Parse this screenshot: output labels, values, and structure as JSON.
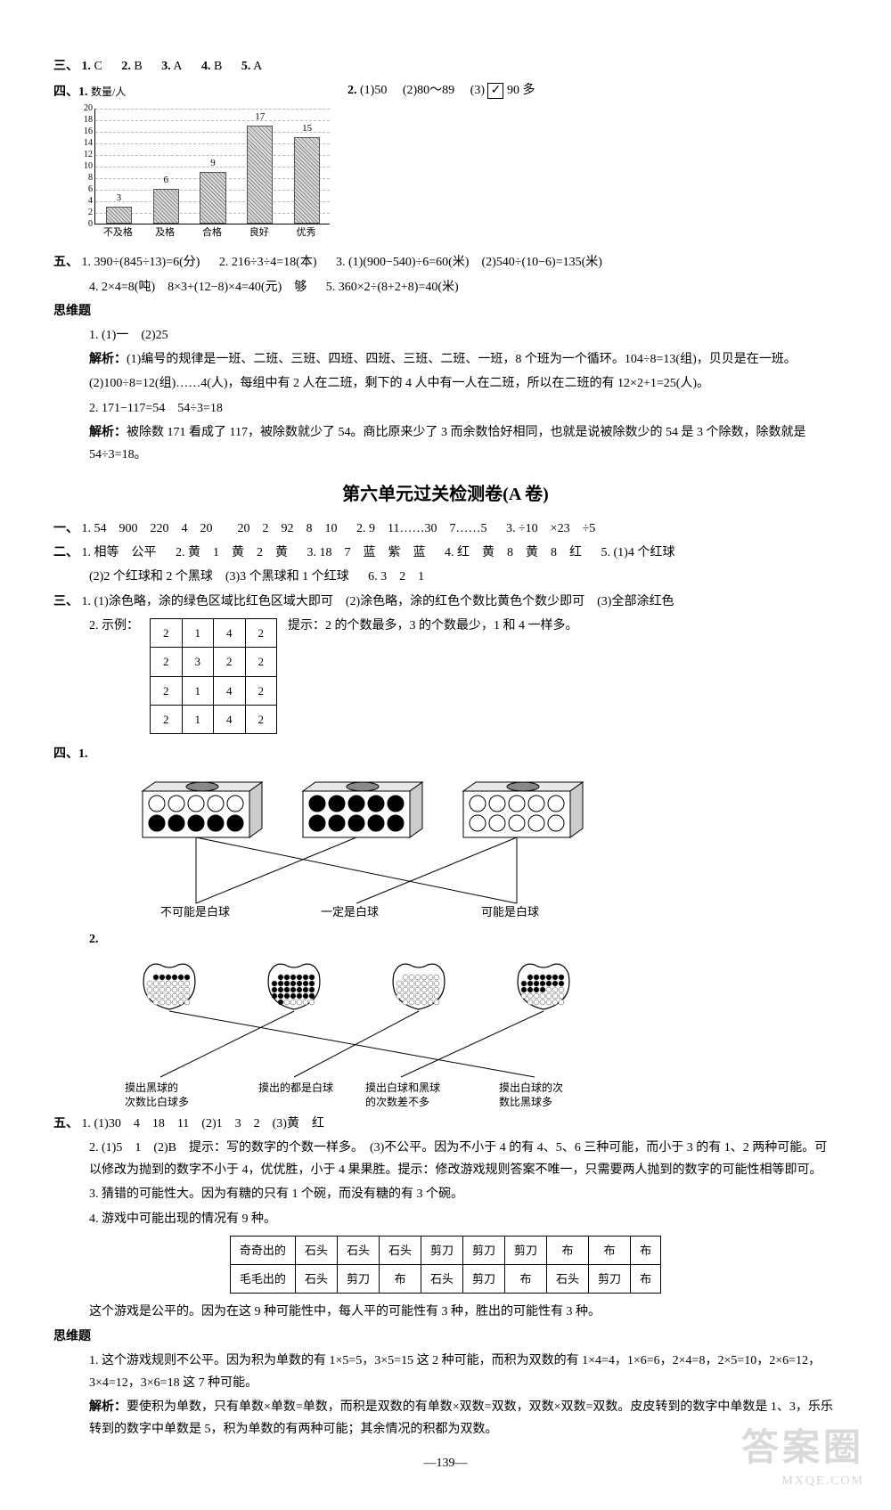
{
  "san": {
    "label": "三、",
    "items": [
      {
        "n": "1.",
        "v": "C"
      },
      {
        "n": "2.",
        "v": "B"
      },
      {
        "n": "3.",
        "v": "A"
      },
      {
        "n": "4.",
        "v": "B"
      },
      {
        "n": "5.",
        "v": "A"
      }
    ]
  },
  "si": {
    "label": "四、1.",
    "chart": {
      "y_title": "数量/人",
      "ymax": 20,
      "ystep": 2,
      "yticks": [
        0,
        2,
        4,
        6,
        8,
        10,
        12,
        14,
        16,
        18,
        20
      ],
      "categories": [
        "不及格",
        "及格",
        "合格",
        "良好",
        "优秀"
      ],
      "values": [
        3,
        6,
        9,
        17,
        15
      ],
      "bar_width_ratio": 0.55
    },
    "q2": {
      "pre": "2.",
      "a": "(1)50",
      "b": "(2)80～89",
      "c": "(3)",
      "check": "✓",
      "d": "90 多"
    }
  },
  "wu": {
    "label": "五、",
    "items": [
      "1. 390÷(845÷13)=6(分)",
      "2. 216÷3÷4=18(本)",
      "3. (1)(900−540)÷6=60(米)　(2)540÷(10−6)=135(米)",
      "4. 2×4=8(吨)　8×3+(12−8)×4=40(元)　够",
      "5. 360×2÷(8+2+8)=40(米)"
    ]
  },
  "siwei1": {
    "label": "思维题",
    "q1a": "1. (1)一　(2)25",
    "q1jiexi_label": "解析：",
    "q1jiexi1": "(1)编号的规律是一班、二班、三班、四班、四班、三班、二班、一班，8 个班为一个循环。104÷8=13(组)，贝贝是在一班。",
    "q1jiexi2": "(2)100÷8=12(组)……4(人)，每组中有 2 人在二班，剩下的 4 人中有一人在二班，所以在二班的有 12×2+1=25(人)。",
    "q2": "2. 171−117=54　54÷3=18",
    "q2jiexi_label": "解析：",
    "q2jiexi": "被除数 171 看成了 117，被除数就少了 54。商比原来少了 3 而余数恰好相同，也就是说被除数少的 54 是 3 个除数，除数就是 54÷3=18。"
  },
  "unit6": {
    "title": "第六单元过关检测卷(A 卷)",
    "yi": {
      "label": "一、",
      "t1": "1. 54　900　220　4　20　　20　2　92　8　10",
      "t2": "2. 9　11……30　7……5",
      "t3": "3. ÷10　×23　÷5"
    },
    "er": {
      "label": "二、",
      "t1": "1. 相等　公平",
      "t2": "2. 黄　1　黄　2　黄",
      "t3": "3. 18　7　蓝　紫　蓝",
      "t4": "4. 红　黄　8　黄　8　红",
      "t5": "5. (1)4 个红球",
      "t5b": "(2)2 个红球和 2 个黑球　(3)3 个黑球和 1 个红球",
      "t6": "6. 3　2　1"
    },
    "san": {
      "label": "三、",
      "t1": "1. (1)涂色略，涂的绿色区域比红色区域大即可　(2)涂色略，涂的红色个数比黄色个数少即可　(3)全部涂红色",
      "t2a": "2. 示例：",
      "t2hint": "提示：2 的个数最多，3 的个数最少，1 和 4 一样多。",
      "grid": [
        [
          "2",
          "1",
          "4",
          "2"
        ],
        [
          "2",
          "3",
          "2",
          "2"
        ],
        [
          "2",
          "1",
          "4",
          "2"
        ],
        [
          "2",
          "1",
          "4",
          "2"
        ]
      ]
    },
    "si": {
      "label": "四、1.",
      "box_labels": [
        "不可能是白球",
        "一定是白球",
        "可能是白球"
      ],
      "q2_label": "2.",
      "bag_labels": [
        "摸出黑球的\n次数比白球多",
        "摸出的都是白球",
        "摸出白球和黑球\n的次数差不多",
        "摸出白球的次\n数比黑球多"
      ]
    },
    "wu": {
      "label": "五、",
      "t1": "1. (1)30　4　18　11　(2)1　3　2　(3)黄　红",
      "t2": "2. (1)5　1　(2)B　提示：写的数字的个数一样多。　(3)不公平。因为不小于 4 的有 4、5、6 三种可能，而小于 3 的有 1、2 两种可能。可以修改为抛到的数字不小于 4，优优胜，小于 4 果果胜。提示：修改游戏规则答案不唯一，只需要两人抛到的数字的可能性相等即可。",
      "t3": "3. 猜错的可能性大。因为有糖的只有 1 个碗，而没有糖的有 3 个碗。",
      "t4": "4. 游戏中可能出现的情况有 9 种。",
      "table": {
        "r1": [
          "奇奇出的",
          "石头",
          "石头",
          "石头",
          "剪刀",
          "剪刀",
          "剪刀",
          "布",
          "布",
          "布"
        ],
        "r2": [
          "毛毛出的",
          "石头",
          "剪刀",
          "布",
          "石头",
          "剪刀",
          "布",
          "石头",
          "剪刀",
          "布"
        ]
      },
      "t4b": "这个游戏是公平的。因为在这 9 种可能性中，每人平的可能性有 3 种，胜出的可能性有 3 种。"
    },
    "siwei": {
      "label": "思维题",
      "t1": "1. 这个游戏规则不公平。因为积为单数的有 1×5=5，3×5=15 这 2 种可能，而积为双数的有 1×4=4，1×6=6，2×4=8，2×5=10，2×6=12，3×4=12，3×6=18 这 7 种可能。",
      "jiexi_label": "解析：",
      "jiexi": "要使积为单数，只有单数×单数=单数，而积是双数的有单数×双数=双数，双数×双数=双数。皮皮转到的数字中单数是 1、3，乐乐转到的数字中单数是 5，积为单数的有两种可能；其余情况的积都为双数。"
    }
  },
  "page_num": "—139—",
  "watermark": "答案圈",
  "watermark_sub": "MXQE.COM"
}
